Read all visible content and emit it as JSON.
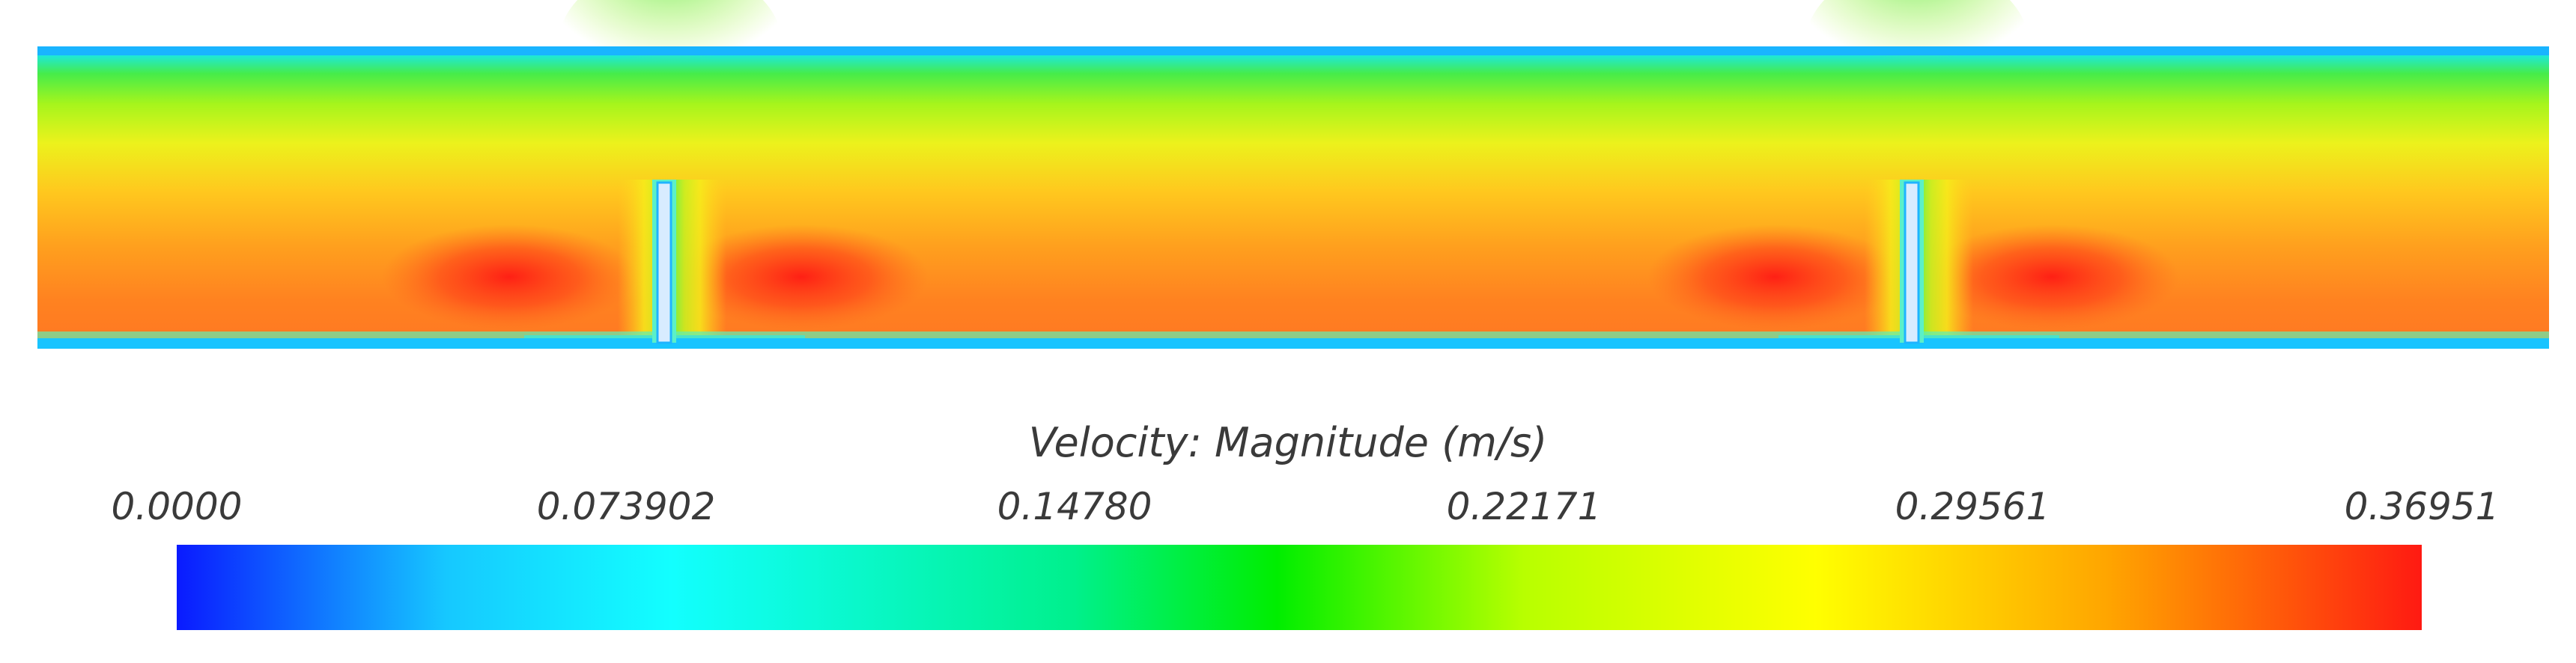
{
  "legend": {
    "title": "Velocity: Magnitude (m/s)",
    "ticks": [
      "0.0000",
      "0.073902",
      "0.14780",
      "0.22171",
      "0.29561",
      "0.36951"
    ],
    "min": 0.0,
    "max": 0.36951,
    "colors": [
      "#0a1aff",
      "#16c8ff",
      "#12ffff",
      "#00f08c",
      "#00ee00",
      "#b8ff00",
      "#ffff00",
      "#ffa500",
      "#ff1a12"
    ]
  }
}
